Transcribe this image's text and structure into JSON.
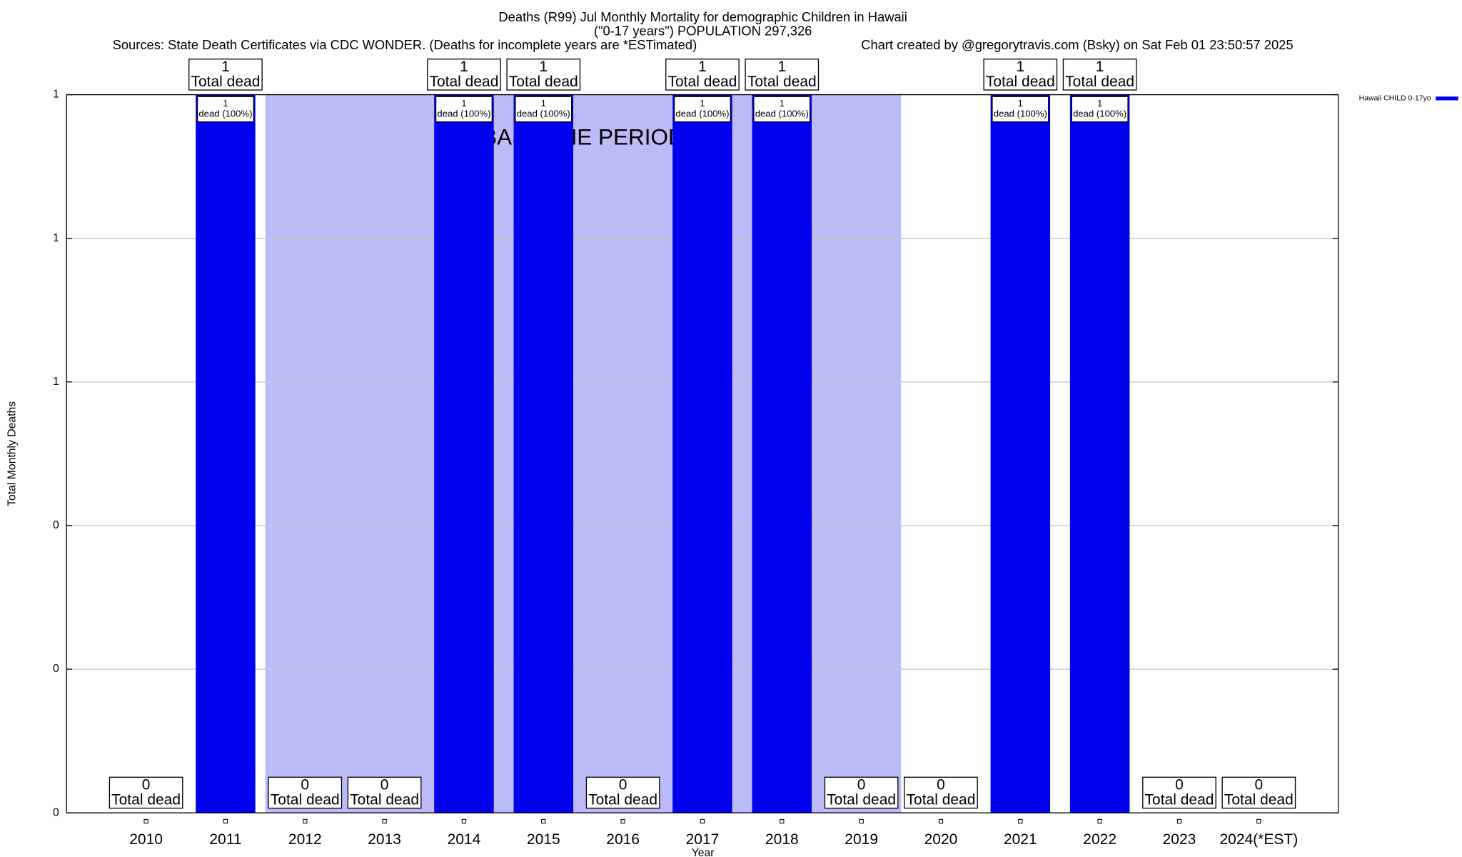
{
  "chart_data": {
    "type": "bar",
    "title": "Deaths (R99) Jul Monthly Mortality for demographic Children in Hawaii",
    "title_line2": "(\"0-17 years\") POPULATION 297,326",
    "subtitle_left": "Sources: State Death Certificates via CDC WONDER. (Deaths for incomplete years are *ESTimated)",
    "subtitle_right": "Chart created by @gregorytravis.com (Bsky) on Sat Feb 01 23:50:57 2025",
    "x_label": "Year",
    "y_label": "Total Monthly Deaths",
    "categories": [
      "2010",
      "2011",
      "2012",
      "2013",
      "2014",
      "2015",
      "2016",
      "2017",
      "2018",
      "2019",
      "2020",
      "2021",
      "2022",
      "2023",
      "2024(*EST)"
    ],
    "series": [
      {
        "name": "Hawaii CHILD 0-17yo",
        "color": "#0000ee",
        "values": [
          0,
          1,
          0,
          0,
          1,
          1,
          0,
          1,
          1,
          0,
          0,
          1,
          1,
          0,
          0
        ]
      }
    ],
    "total_label_text": "Total dead",
    "inner_label_text": "dead (100%)",
    "baseline": {
      "label": "BASELINE PERIOD",
      "start": "2012",
      "end": "2019",
      "color": "#bbbbf8"
    },
    "ylim": [
      0,
      1
    ],
    "yticks": [
      0,
      {
        "value": 0.2,
        "label": "0"
      },
      {
        "value": 0.4,
        "label": "0"
      },
      {
        "value": 0.6,
        "label": "1"
      },
      {
        "value": 0.8,
        "label": "1"
      },
      1
    ],
    "grid": true,
    "legend": "top-right"
  }
}
